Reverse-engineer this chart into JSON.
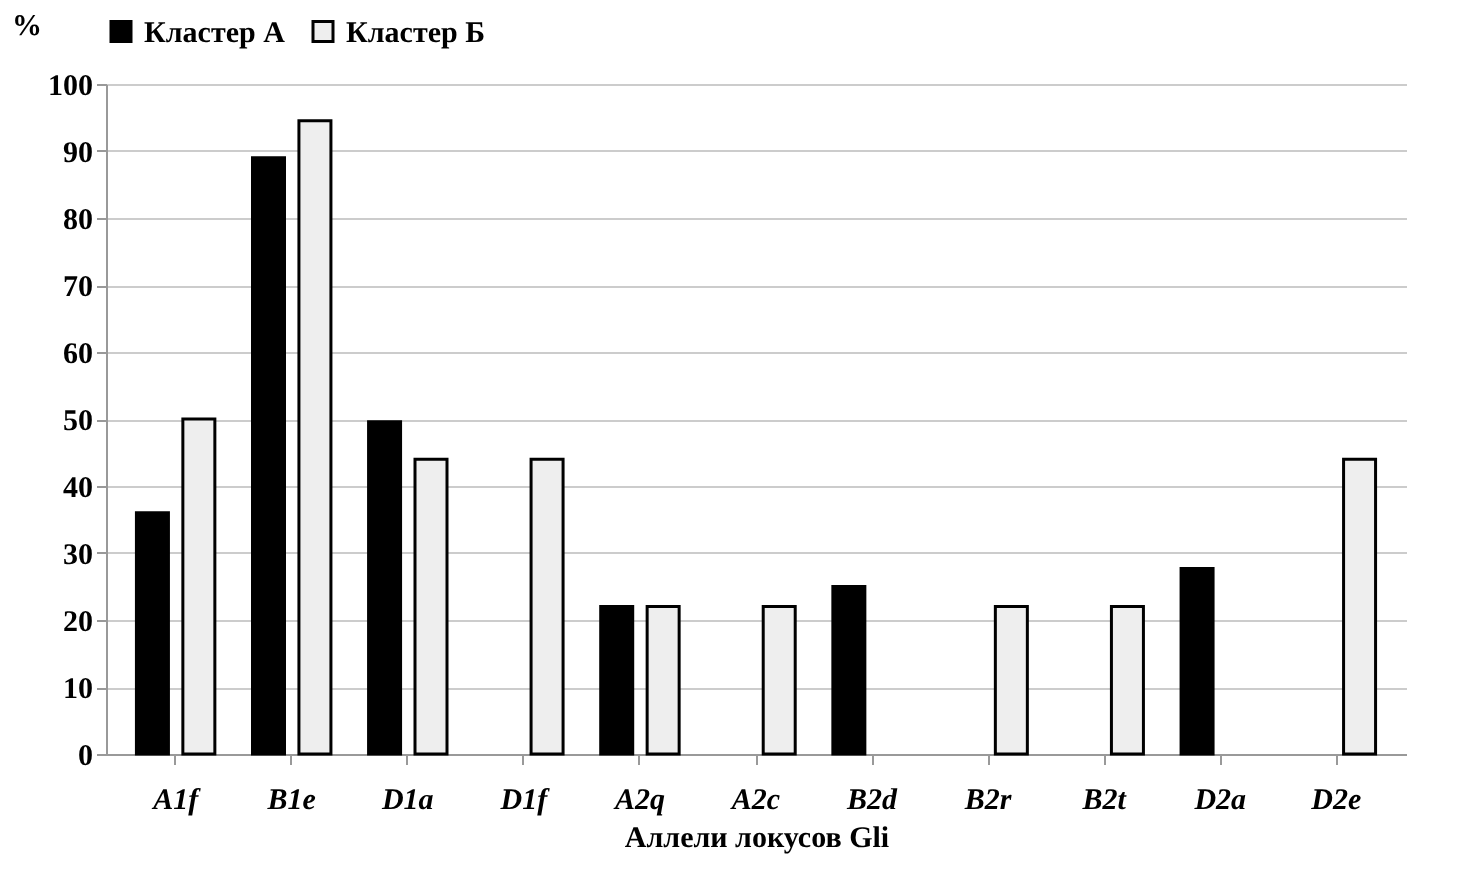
{
  "chart_data": {
    "type": "bar",
    "ylabel": "%",
    "xlabel": "Аллели локусов Gli",
    "categories": [
      "A1f",
      "B1e",
      "D1a",
      "D1f",
      "A2q",
      "A2c",
      "B2d",
      "B2r",
      "B2t",
      "D2a",
      "D2e"
    ],
    "series": [
      {
        "name": "Кластер А",
        "color": "#000000",
        "values": [
          36,
          89,
          49.6,
          null,
          22,
          null,
          25,
          null,
          null,
          27.7,
          null
        ]
      },
      {
        "name": "Кластер Б",
        "color": "#eeeeee",
        "values": [
          50,
          94.5,
          44,
          44,
          22,
          22,
          null,
          22,
          22,
          null,
          44
        ]
      }
    ],
    "ylim": [
      0,
      100
    ],
    "yticks": [
      0,
      10,
      20,
      30,
      40,
      50,
      60,
      70,
      80,
      90,
      100
    ],
    "grid": "y",
    "legend": "top"
  }
}
